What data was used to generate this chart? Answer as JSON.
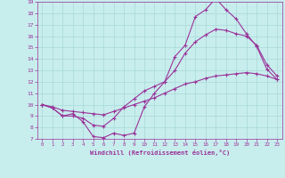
{
  "xlabel": "Windchill (Refroidissement éolien,°C)",
  "xlim": [
    -0.5,
    23.5
  ],
  "ylim": [
    7,
    19
  ],
  "xticks": [
    0,
    1,
    2,
    3,
    4,
    5,
    6,
    7,
    8,
    9,
    10,
    11,
    12,
    13,
    14,
    15,
    16,
    17,
    18,
    19,
    20,
    21,
    22,
    23
  ],
  "yticks": [
    7,
    8,
    9,
    10,
    11,
    12,
    13,
    14,
    15,
    16,
    17,
    18,
    19
  ],
  "background_color": "#c8eded",
  "grid_color": "#a8d8d8",
  "line_color": "#993399",
  "curve1_x": [
    0,
    1,
    2,
    3,
    4,
    5,
    6,
    7,
    8,
    9,
    10,
    11,
    12,
    13,
    14,
    15,
    16,
    17,
    18,
    19,
    20,
    21,
    22,
    23
  ],
  "curve1_y": [
    10.0,
    9.7,
    9.0,
    9.2,
    8.5,
    7.2,
    7.1,
    7.5,
    7.3,
    7.5,
    9.8,
    11.0,
    12.0,
    14.2,
    15.2,
    17.7,
    18.3,
    19.3,
    18.3,
    17.5,
    16.2,
    15.1,
    13.1,
    12.2
  ],
  "curve2_x": [
    0,
    1,
    2,
    3,
    4,
    5,
    6,
    7,
    8,
    9,
    10,
    11,
    12,
    13,
    14,
    15,
    16,
    17,
    18,
    19,
    20,
    21,
    22,
    23
  ],
  "curve2_y": [
    10.0,
    9.8,
    9.5,
    9.4,
    9.3,
    9.2,
    9.1,
    9.4,
    9.7,
    10.0,
    10.3,
    10.6,
    11.0,
    11.4,
    11.8,
    12.0,
    12.3,
    12.5,
    12.6,
    12.7,
    12.8,
    12.7,
    12.5,
    12.2
  ],
  "curve3_x": [
    0,
    1,
    2,
    3,
    4,
    5,
    6,
    7,
    8,
    9,
    10,
    11,
    12,
    13,
    14,
    15,
    16,
    17,
    18,
    19,
    20,
    21,
    22,
    23
  ],
  "curve3_y": [
    10.0,
    9.7,
    9.0,
    9.0,
    8.8,
    8.2,
    8.1,
    8.8,
    9.8,
    10.5,
    11.2,
    11.6,
    12.0,
    13.0,
    14.5,
    15.5,
    16.1,
    16.6,
    16.5,
    16.2,
    16.0,
    15.2,
    13.5,
    12.5
  ]
}
